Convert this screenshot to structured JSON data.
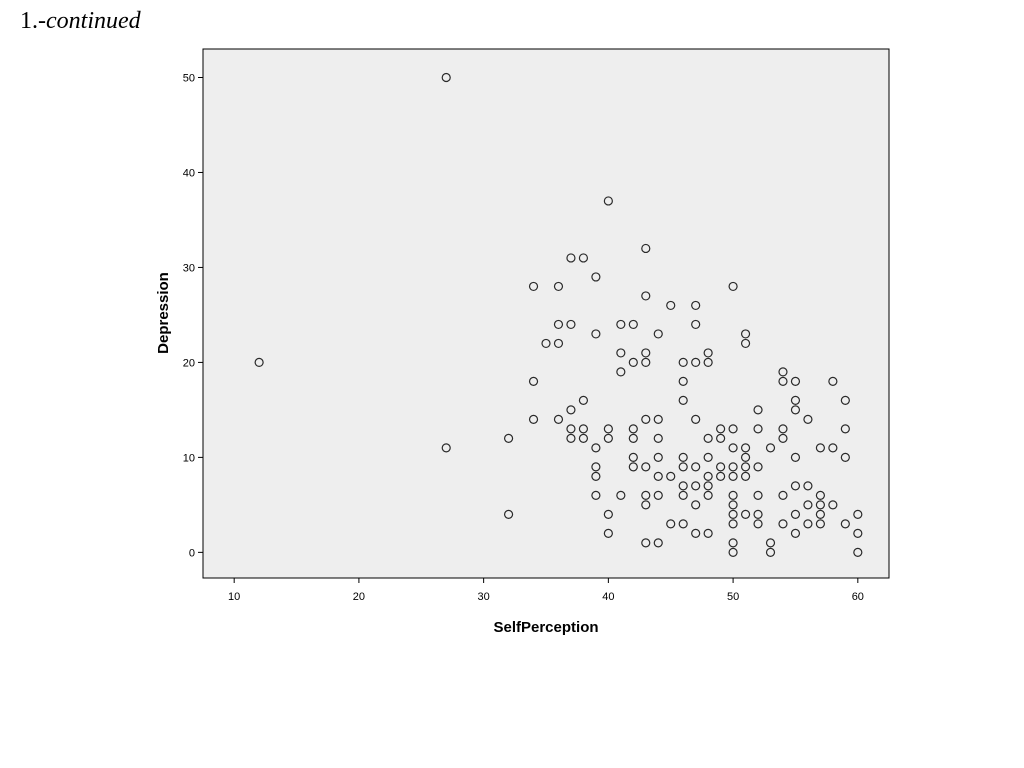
{
  "heading": {
    "number": "1.",
    "suffix": "-continued"
  },
  "chart_data": {
    "type": "scatter",
    "xlabel": "SelfPerception",
    "ylabel": "Depression",
    "xlim": [
      7.5,
      62.5
    ],
    "ylim": [
      -2.7,
      53
    ],
    "xticks": [
      10,
      20,
      30,
      40,
      50,
      60
    ],
    "yticks": [
      0,
      10,
      20,
      30,
      40,
      50
    ],
    "grid": false,
    "colors": {
      "plot_bg": "#eeeeee",
      "marker_stroke": "#2a2a2a",
      "axis": "#000000"
    },
    "points": [
      [
        27,
        50
      ],
      [
        12,
        20
      ],
      [
        27,
        11
      ],
      [
        32,
        12
      ],
      [
        32,
        4
      ],
      [
        34,
        28
      ],
      [
        34,
        18
      ],
      [
        34,
        14
      ],
      [
        35,
        22
      ],
      [
        36,
        28
      ],
      [
        36,
        24
      ],
      [
        36,
        22
      ],
      [
        36,
        14
      ],
      [
        37,
        31
      ],
      [
        37,
        24
      ],
      [
        37,
        15
      ],
      [
        37,
        13
      ],
      [
        37,
        12
      ],
      [
        38,
        31
      ],
      [
        38,
        16
      ],
      [
        38,
        13
      ],
      [
        38,
        12
      ],
      [
        39,
        29
      ],
      [
        39,
        23
      ],
      [
        39,
        11
      ],
      [
        39,
        9
      ],
      [
        39,
        8
      ],
      [
        39,
        6
      ],
      [
        40,
        37
      ],
      [
        40,
        13
      ],
      [
        40,
        12
      ],
      [
        40,
        4
      ],
      [
        40,
        2
      ],
      [
        41,
        24
      ],
      [
        41,
        21
      ],
      [
        41,
        19
      ],
      [
        41,
        6
      ],
      [
        42,
        24
      ],
      [
        42,
        20
      ],
      [
        42,
        13
      ],
      [
        42,
        12
      ],
      [
        42,
        10
      ],
      [
        42,
        9
      ],
      [
        43,
        32
      ],
      [
        43,
        27
      ],
      [
        43,
        21
      ],
      [
        43,
        20
      ],
      [
        43,
        14
      ],
      [
        43,
        9
      ],
      [
        43,
        6
      ],
      [
        43,
        5
      ],
      [
        43,
        1
      ],
      [
        44,
        23
      ],
      [
        44,
        14
      ],
      [
        44,
        12
      ],
      [
        44,
        10
      ],
      [
        44,
        8
      ],
      [
        44,
        6
      ],
      [
        44,
        1
      ],
      [
        45,
        26
      ],
      [
        45,
        8
      ],
      [
        45,
        3
      ],
      [
        46,
        20
      ],
      [
        46,
        18
      ],
      [
        46,
        16
      ],
      [
        46,
        10
      ],
      [
        46,
        9
      ],
      [
        46,
        7
      ],
      [
        46,
        6
      ],
      [
        46,
        3
      ],
      [
        47,
        26
      ],
      [
        47,
        24
      ],
      [
        47,
        20
      ],
      [
        47,
        14
      ],
      [
        47,
        9
      ],
      [
        47,
        7
      ],
      [
        47,
        5
      ],
      [
        47,
        2
      ],
      [
        48,
        21
      ],
      [
        48,
        20
      ],
      [
        48,
        12
      ],
      [
        48,
        10
      ],
      [
        48,
        8
      ],
      [
        48,
        7
      ],
      [
        48,
        6
      ],
      [
        48,
        2
      ],
      [
        49,
        13
      ],
      [
        49,
        12
      ],
      [
        49,
        9
      ],
      [
        49,
        8
      ],
      [
        50,
        28
      ],
      [
        50,
        13
      ],
      [
        50,
        11
      ],
      [
        50,
        9
      ],
      [
        50,
        8
      ],
      [
        50,
        6
      ],
      [
        50,
        5
      ],
      [
        50,
        4
      ],
      [
        50,
        3
      ],
      [
        50,
        1
      ],
      [
        50,
        0
      ],
      [
        51,
        23
      ],
      [
        51,
        22
      ],
      [
        51,
        11
      ],
      [
        51,
        10
      ],
      [
        51,
        9
      ],
      [
        51,
        8
      ],
      [
        51,
        4
      ],
      [
        52,
        15
      ],
      [
        52,
        13
      ],
      [
        52,
        9
      ],
      [
        52,
        6
      ],
      [
        52,
        4
      ],
      [
        52,
        3
      ],
      [
        53,
        11
      ],
      [
        53,
        1
      ],
      [
        53,
        0
      ],
      [
        54,
        19
      ],
      [
        54,
        18
      ],
      [
        54,
        13
      ],
      [
        54,
        12
      ],
      [
        54,
        6
      ],
      [
        54,
        3
      ],
      [
        55,
        18
      ],
      [
        55,
        16
      ],
      [
        55,
        15
      ],
      [
        55,
        10
      ],
      [
        55,
        7
      ],
      [
        55,
        4
      ],
      [
        55,
        2
      ],
      [
        56,
        14
      ],
      [
        56,
        7
      ],
      [
        56,
        5
      ],
      [
        56,
        3
      ],
      [
        57,
        11
      ],
      [
        57,
        6
      ],
      [
        57,
        5
      ],
      [
        57,
        4
      ],
      [
        57,
        3
      ],
      [
        58,
        18
      ],
      [
        58,
        11
      ],
      [
        58,
        5
      ],
      [
        59,
        16
      ],
      [
        59,
        13
      ],
      [
        59,
        10
      ],
      [
        59,
        3
      ],
      [
        60,
        4
      ],
      [
        60,
        2
      ],
      [
        60,
        0
      ]
    ]
  }
}
